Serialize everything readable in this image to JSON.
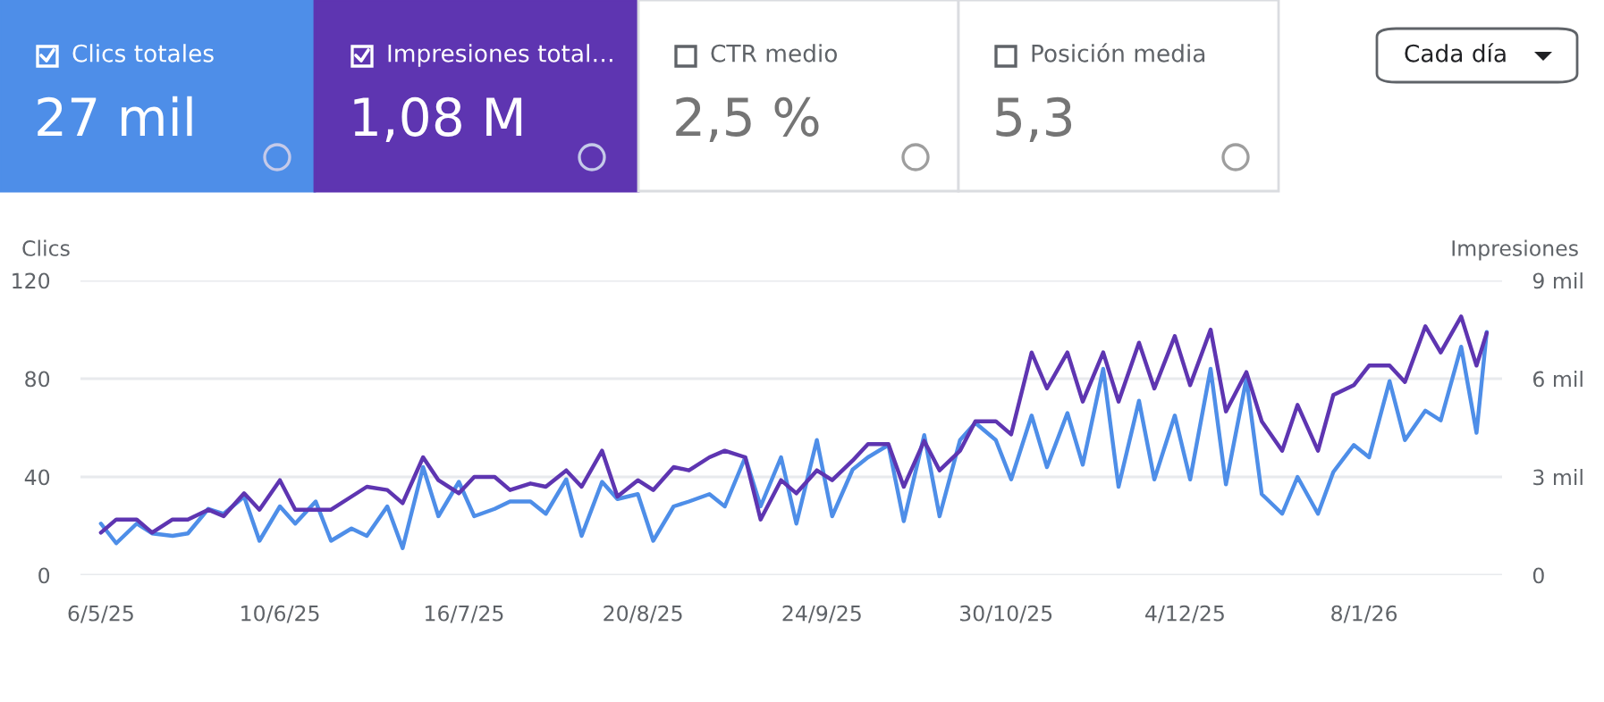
{
  "chart_data": {
    "type": "line",
    "ylabel": "Clics",
    "y2label": "Impresiones",
    "annotations": [
      "Clics totales",
      "27 mil",
      "Impresiones total…",
      "1,08 M",
      "CTR medio",
      "2,5 %",
      "Posición media",
      "5,3",
      "Cada día"
    ],
    "x": [
      "2025-05-06",
      "2025-05-09",
      "2025-05-13",
      "2025-05-16",
      "2025-05-20",
      "2025-05-23",
      "2025-05-27",
      "2025-05-30",
      "2025-06-03",
      "2025-06-06",
      "2025-06-10",
      "2025-06-13",
      "2025-06-17",
      "2025-06-20",
      "2025-06-24",
      "2025-06-27",
      "2025-07-01",
      "2025-07-04",
      "2025-07-08",
      "2025-07-11",
      "2025-07-15",
      "2025-07-18",
      "2025-07-22",
      "2025-07-25",
      "2025-07-29",
      "2025-08-01",
      "2025-08-05",
      "2025-08-08",
      "2025-08-12",
      "2025-08-15",
      "2025-08-19",
      "2025-08-22",
      "2025-08-26",
      "2025-08-29",
      "2025-09-02",
      "2025-09-05",
      "2025-09-09",
      "2025-09-12",
      "2025-09-16",
      "2025-09-19",
      "2025-09-23",
      "2025-09-26",
      "2025-09-30",
      "2025-10-03",
      "2025-10-07",
      "2025-10-10",
      "2025-10-14",
      "2025-10-17",
      "2025-10-21",
      "2025-10-24",
      "2025-10-28",
      "2025-10-31",
      "2025-11-04",
      "2025-11-07",
      "2025-11-11",
      "2025-11-14",
      "2025-11-18",
      "2025-11-21",
      "2025-11-25",
      "2025-11-28",
      "2025-12-02",
      "2025-12-05",
      "2025-12-09",
      "2025-12-12",
      "2025-12-16",
      "2025-12-19",
      "2025-12-23",
      "2025-12-26",
      "2025-12-30",
      "2026-01-02",
      "2026-01-06",
      "2026-01-09",
      "2026-01-13",
      "2026-01-16",
      "2026-01-20",
      "2026-01-23",
      "2026-01-27",
      "2026-01-30",
      "2026-02-01"
    ],
    "series": [
      {
        "color": "#4e8ee8",
        "values": [
          21,
          13,
          21,
          17,
          16,
          17,
          27,
          25,
          32,
          14,
          28,
          21,
          30,
          14,
          19,
          16,
          28,
          11,
          44,
          24,
          38,
          24,
          27,
          30,
          30,
          25,
          39,
          16,
          38,
          31,
          33,
          14,
          28,
          30,
          33,
          28,
          48,
          28,
          48,
          21,
          55,
          24,
          43,
          48,
          53,
          22,
          57,
          24,
          55,
          62,
          55,
          39,
          65,
          44,
          66,
          45,
          84,
          36,
          71,
          39,
          65,
          39,
          84,
          37,
          80,
          33,
          25,
          40,
          25,
          42,
          53,
          48,
          79,
          55,
          67,
          63,
          93,
          58,
          99
        ]
      },
      {
        "color": "#5e35b1",
        "axis": "y2",
        "values": [
          1.3,
          1.7,
          1.7,
          1.3,
          1.7,
          1.7,
          2.0,
          1.8,
          2.5,
          2.0,
          2.9,
          2.0,
          2.0,
          2.0,
          2.4,
          2.7,
          2.6,
          2.2,
          3.6,
          2.9,
          2.5,
          3.0,
          3.0,
          2.6,
          2.8,
          2.7,
          3.2,
          2.7,
          3.8,
          2.4,
          2.9,
          2.6,
          3.3,
          3.2,
          3.6,
          3.8,
          3.6,
          1.7,
          2.9,
          2.5,
          3.2,
          2.9,
          3.5,
          4.0,
          4.0,
          2.7,
          4.1,
          3.2,
          3.8,
          4.7,
          4.7,
          4.3,
          6.8,
          5.7,
          6.8,
          5.3,
          6.8,
          5.3,
          7.1,
          5.7,
          7.3,
          5.8,
          7.5,
          5.0,
          6.2,
          4.7,
          3.8,
          5.2,
          3.8,
          5.5,
          5.8,
          6.4,
          6.4,
          5.9,
          7.6,
          6.8,
          7.9,
          6.4,
          7.4
        ]
      }
    ],
    "xlim": [
      "2025-05-02",
      "2026-02-04"
    ],
    "xticks": [
      {
        "value": "2025-05-06",
        "label": "6/5/25"
      },
      {
        "value": "2025-06-10",
        "label": "10/6/25"
      },
      {
        "value": "2025-07-16",
        "label": "16/7/25"
      },
      {
        "value": "2025-08-20",
        "label": "20/8/25"
      },
      {
        "value": "2025-09-24",
        "label": "24/9/25"
      },
      {
        "value": "2025-10-30",
        "label": "30/10/25"
      },
      {
        "value": "2025-12-04",
        "label": "4/12/25"
      },
      {
        "value": "2026-01-08",
        "label": "8/1/26"
      }
    ],
    "ylim": [
      0,
      120
    ],
    "yticks": [
      0,
      40,
      80,
      120
    ],
    "y2lim": [
      0,
      9
    ],
    "y2ticks": [
      0,
      {
        "value": 3,
        "label": "3 mil"
      },
      {
        "value": 6,
        "label": "6 mil"
      },
      {
        "value": 9,
        "label": "9 mil"
      }
    ],
    "grid": "y"
  }
}
